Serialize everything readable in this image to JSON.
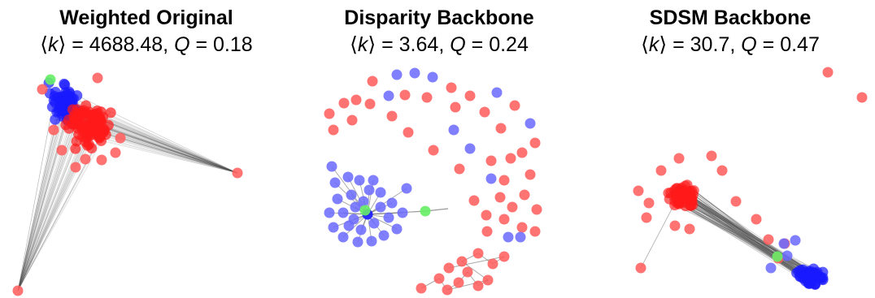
{
  "panels": [
    {
      "title": "Weighted Original",
      "k": "4688.48",
      "q": "0.18"
    },
    {
      "title": "Disparity Backbone",
      "k": "3.64",
      "q": "0.24"
    },
    {
      "title": "SDSM Backbone",
      "k": "30.7",
      "q": "0.47"
    }
  ],
  "colors": {
    "group_red": "#ff5a5a",
    "group_red_dense": "#ff1a1a",
    "group_blue": "#6a6aff",
    "group_blue_dense": "#1a1aff",
    "group_green": "#66ee66",
    "edge": "#555555"
  }
}
